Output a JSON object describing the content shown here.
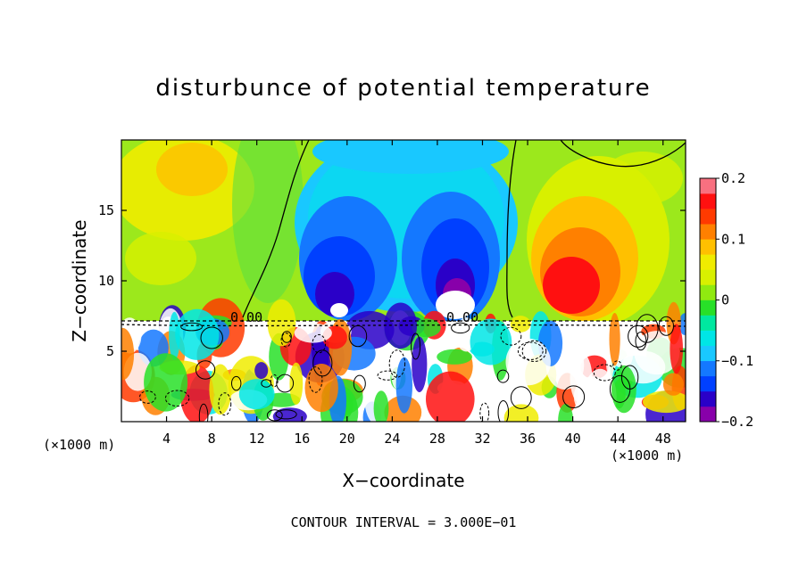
{
  "chart_data": {
    "type": "heatmap",
    "title": "disturbunce of potential temperature",
    "xlabel": "X−coordinate",
    "ylabel": "Z−coordinate",
    "x_unit": "(×1000 m)",
    "z_unit": "(×1000 m)",
    "xlim": [
      0,
      50
    ],
    "ylim": [
      0,
      20
    ],
    "x_ticks": [
      "4",
      "8",
      "12",
      "16",
      "20",
      "24",
      "28",
      "32",
      "36",
      "40",
      "44",
      "48"
    ],
    "y_ticks": [
      "5",
      "10",
      "15"
    ],
    "colorbar": {
      "range": [
        -0.2,
        0.2
      ],
      "tick_labels": [
        "0.2",
        "0.1",
        "0",
        "−0.1",
        "−0.2"
      ],
      "colors": [
        "#8800aa",
        "#2a00c8",
        "#0040ff",
        "#1478ff",
        "#19c8ff",
        "#00e6e6",
        "#00e8a0",
        "#28e028",
        "#90ea10",
        "#d8f000",
        "#f0ec00",
        "#ffc000",
        "#ff8000",
        "#ff3a00",
        "#ff1010",
        "#f87080"
      ]
    },
    "contour_label": "0.00",
    "footer": "CONTOUR INTERVAL = 3.000E−01"
  }
}
